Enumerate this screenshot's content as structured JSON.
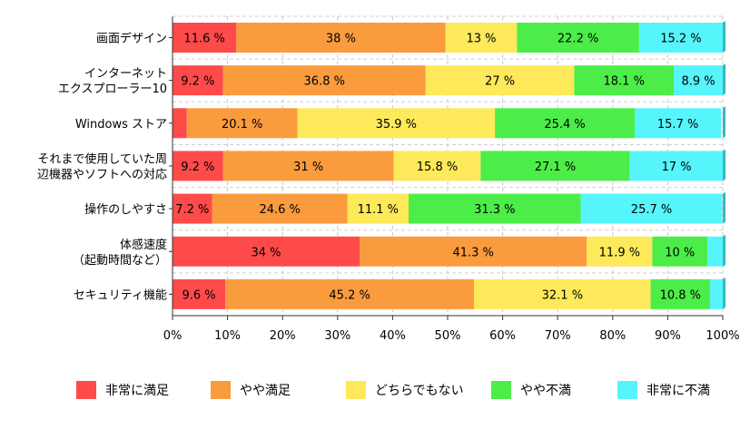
{
  "chart_data": {
    "type": "bar",
    "orientation": "horizontal",
    "stacked": true,
    "categories": [
      [
        "画面デザイン"
      ],
      [
        "インターネット",
        "エクスプローラー10"
      ],
      [
        "Windows ストア"
      ],
      [
        "それまで使用していた周",
        "辺機器やソフトへの対応"
      ],
      [
        "操作のしやすさ"
      ],
      [
        "体感速度",
        "（起動時間など）"
      ],
      [
        "セキュリティ機能"
      ]
    ],
    "series": [
      {
        "name": "非常に満足",
        "color": "#ff4a4a",
        "values": [
          11.6,
          9.2,
          2.6,
          9.2,
          7.2,
          34,
          9.6
        ]
      },
      {
        "name": "やや満足",
        "color": "#fa9b3e",
        "values": [
          38,
          36.8,
          20.1,
          31,
          24.6,
          41.3,
          45.2
        ]
      },
      {
        "name": "どちらでもない",
        "color": "#fde95a",
        "values": [
          13,
          27,
          35.9,
          15.8,
          11.1,
          11.9,
          32.1
        ]
      },
      {
        "name": "やや不満",
        "color": "#4ced48",
        "values": [
          22.2,
          18.1,
          25.4,
          27.1,
          31.3,
          10,
          10.8
        ]
      },
      {
        "name": "非常に不満",
        "color": "#56f4fb",
        "values": [
          15.2,
          8.9,
          15.7,
          17,
          25.7,
          3.2,
          2.3
        ]
      }
    ],
    "data_labels": [
      [
        "11.6 %",
        "38 %",
        "13 %",
        "22.2 %",
        "15.2 %"
      ],
      [
        "9.2 %",
        "36.8 %",
        "27 %",
        "18.1 %",
        "8.9 %"
      ],
      [
        "",
        "20.1 %",
        "35.9 %",
        "25.4 %",
        "15.7 %"
      ],
      [
        "9.2 %",
        "31 %",
        "15.8 %",
        "27.1 %",
        "17 %"
      ],
      [
        "7.2 %",
        "24.6 %",
        "11.1 %",
        "31.3 %",
        "25.7 %"
      ],
      [
        "34 %",
        "41.3 %",
        "11.9 %",
        "10 %",
        ""
      ],
      [
        "9.6 %",
        "45.2 %",
        "32.1 %",
        "10.8 %",
        ""
      ]
    ],
    "x_ticks": [
      "0%",
      "10%",
      "20%",
      "30%",
      "40%",
      "50%",
      "60%",
      "70%",
      "80%",
      "90%",
      "100%"
    ],
    "xlim": [
      0,
      100
    ],
    "grid": true,
    "legend_position": "bottom"
  }
}
